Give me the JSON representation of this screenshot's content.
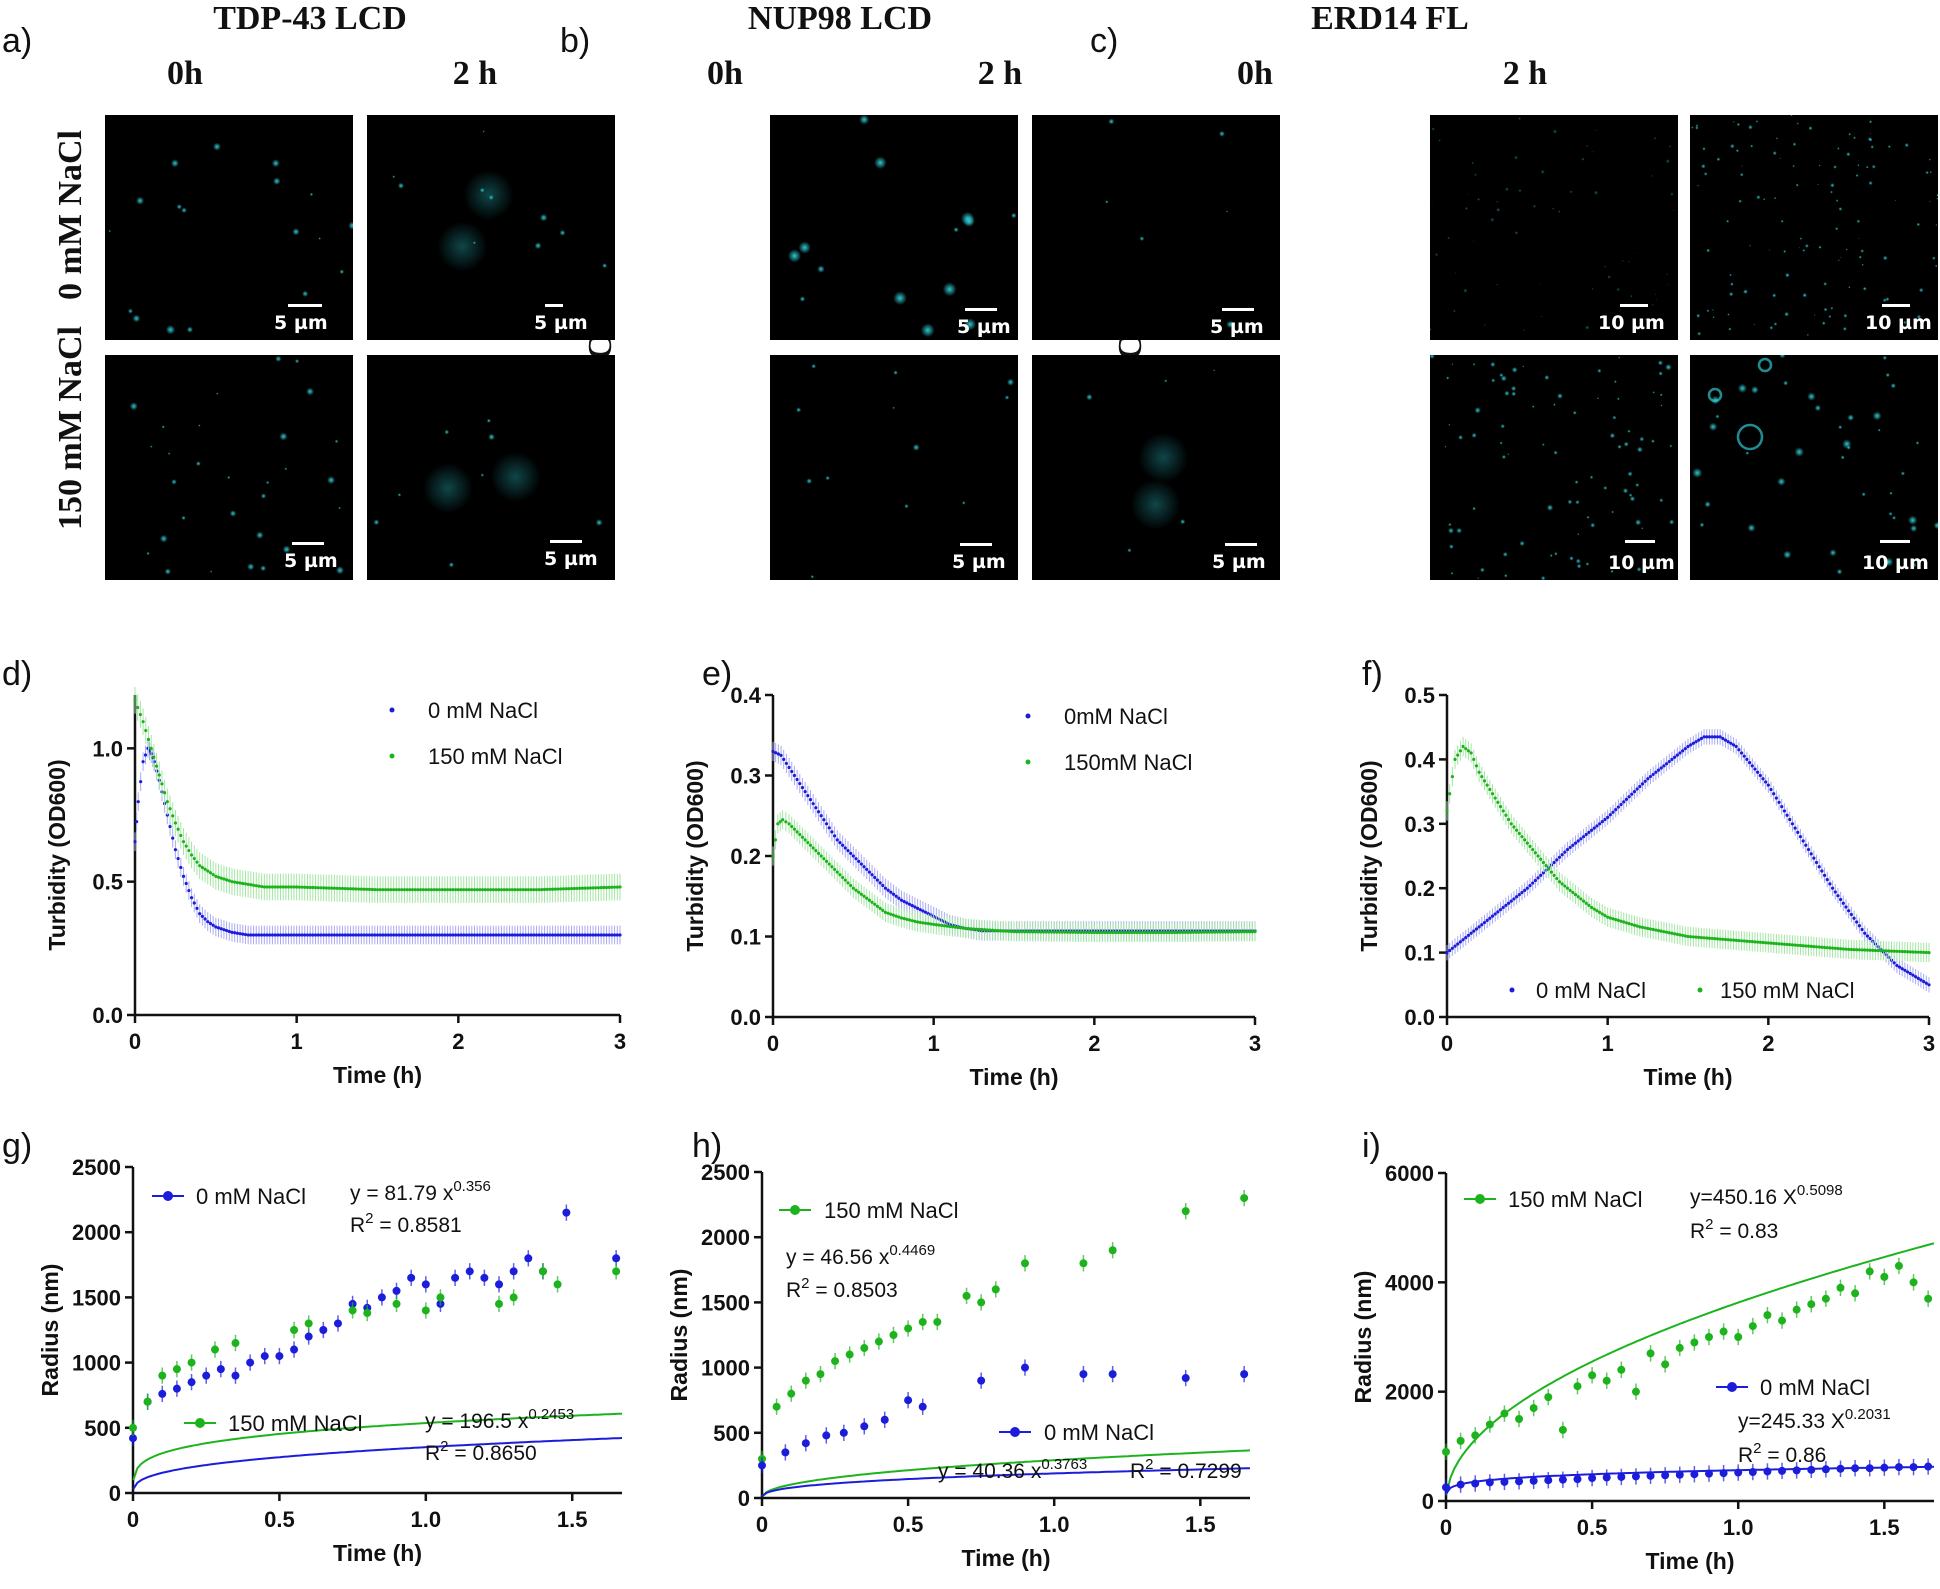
{
  "columns": [
    {
      "letter": "a)",
      "title": "TDP-43 LCD"
    },
    {
      "letter": "b)",
      "title": "NUP98 LCD"
    },
    {
      "letter": "c)",
      "title": "ERD14 FL"
    }
  ],
  "time_labels": [
    "0h",
    "2 h"
  ],
  "row_labels": [
    "0 mM NaCl",
    "150 mM NaCl"
  ],
  "scale_bars": {
    "a": [
      "5 µm",
      "5 µm",
      "5 µm",
      "5 µm"
    ],
    "b": [
      "5 µm",
      "5 µm",
      "5 µm",
      "5 µm"
    ],
    "c": [
      "10 µm",
      "10 µm",
      "10 µm",
      "10 µm"
    ]
  },
  "colors": {
    "blue": "#1c1cdb",
    "green": "#1db31d",
    "blue_err": "#a9a9f2",
    "green_err": "#a3e6a3",
    "droplet": "#2ec8d0"
  },
  "chart_data": [
    {
      "id": "d",
      "letter": "d)",
      "type": "scatter",
      "xlabel": "Time (h)",
      "ylabel": "Turbidity (OD600)",
      "xlim": [
        0,
        3
      ],
      "ylim": [
        0,
        1.2
      ],
      "xticks": [
        "0",
        "1",
        "2",
        "3"
      ],
      "xtick_values": [
        0,
        1,
        2,
        3
      ],
      "yticks": [
        "0.0",
        "0.5",
        "1.0"
      ],
      "ytick_values": [
        0,
        0.5,
        1.0
      ],
      "series": [
        {
          "name": "0 mM NaCl",
          "color": "blue",
          "kind": "dots",
          "x": [
            0,
            0.02,
            0.05,
            0.08,
            0.1,
            0.12,
            0.15,
            0.2,
            0.25,
            0.3,
            0.35,
            0.4,
            0.45,
            0.5,
            0.6,
            0.7,
            0.8,
            1.0,
            1.5,
            2.0,
            2.5,
            3.0
          ],
          "y": [
            0.65,
            0.8,
            0.95,
            1.0,
            0.98,
            0.95,
            0.88,
            0.75,
            0.62,
            0.52,
            0.44,
            0.38,
            0.35,
            0.33,
            0.31,
            0.3,
            0.3,
            0.3,
            0.3,
            0.3,
            0.3,
            0.3
          ],
          "err": 0.035
        },
        {
          "name": "150 mM NaCl",
          "color": "green",
          "kind": "dots",
          "x": [
            0,
            0.05,
            0.1,
            0.15,
            0.2,
            0.25,
            0.3,
            0.35,
            0.4,
            0.5,
            0.6,
            0.7,
            0.8,
            1.0,
            1.5,
            2.0,
            2.5,
            3.0
          ],
          "y": [
            1.18,
            1.1,
            1.0,
            0.9,
            0.8,
            0.72,
            0.65,
            0.6,
            0.56,
            0.52,
            0.5,
            0.49,
            0.48,
            0.48,
            0.47,
            0.47,
            0.47,
            0.48
          ],
          "err": 0.05
        }
      ],
      "legend_pos": "top-right"
    },
    {
      "id": "e",
      "letter": "e)",
      "type": "scatter",
      "xlabel": "Time (h)",
      "ylabel": "Turbidity (OD600)",
      "xlim": [
        0,
        3
      ],
      "ylim": [
        0,
        0.4
      ],
      "xticks": [
        "0",
        "1",
        "2",
        "3"
      ],
      "xtick_values": [
        0,
        1,
        2,
        3
      ],
      "yticks": [
        "0.0",
        "0.1",
        "0.2",
        "0.3",
        "0.4"
      ],
      "ytick_values": [
        0,
        0.1,
        0.2,
        0.3,
        0.4
      ],
      "series": [
        {
          "name": "0mM NaCl",
          "color": "blue",
          "kind": "dots",
          "x": [
            0,
            0.05,
            0.1,
            0.2,
            0.3,
            0.4,
            0.5,
            0.6,
            0.7,
            0.8,
            0.9,
            1.0,
            1.1,
            1.2,
            1.3,
            1.5,
            2.0,
            2.5,
            3.0
          ],
          "y": [
            0.33,
            0.325,
            0.31,
            0.28,
            0.25,
            0.22,
            0.2,
            0.18,
            0.16,
            0.145,
            0.135,
            0.125,
            0.115,
            0.11,
            0.107,
            0.107,
            0.107,
            0.107,
            0.107
          ],
          "err": 0.012
        },
        {
          "name": "150mM NaCl",
          "color": "green",
          "kind": "dots",
          "x": [
            0,
            0.03,
            0.06,
            0.1,
            0.2,
            0.3,
            0.4,
            0.5,
            0.6,
            0.7,
            0.8,
            0.9,
            1.0,
            1.2,
            1.5,
            2.0,
            2.5,
            3.0
          ],
          "y": [
            0.2,
            0.24,
            0.245,
            0.24,
            0.22,
            0.2,
            0.18,
            0.16,
            0.145,
            0.13,
            0.123,
            0.118,
            0.115,
            0.11,
            0.106,
            0.105,
            0.105,
            0.106
          ],
          "err": 0.012
        }
      ],
      "legend_pos": "top-right"
    },
    {
      "id": "f",
      "letter": "f)",
      "type": "scatter",
      "xlabel": "Time (h)",
      "ylabel": "Turbidity (OD600)",
      "xlim": [
        0,
        3
      ],
      "ylim": [
        0,
        0.5
      ],
      "xticks": [
        "0",
        "1",
        "2",
        "3"
      ],
      "xtick_values": [
        0,
        1,
        2,
        3
      ],
      "yticks": [
        "0.0",
        "0.1",
        "0.2",
        "0.3",
        "0.4",
        "0.5"
      ],
      "ytick_values": [
        0,
        0.1,
        0.2,
        0.3,
        0.4,
        0.5
      ],
      "series": [
        {
          "name": "0 mM NaCl",
          "color": "blue",
          "kind": "dots",
          "x": [
            0,
            0.1,
            0.25,
            0.5,
            0.75,
            1.0,
            1.25,
            1.5,
            1.6,
            1.7,
            1.8,
            2.0,
            2.2,
            2.4,
            2.6,
            2.8,
            3.0
          ],
          "y": [
            0.1,
            0.12,
            0.15,
            0.2,
            0.26,
            0.31,
            0.37,
            0.42,
            0.435,
            0.435,
            0.42,
            0.36,
            0.28,
            0.2,
            0.13,
            0.08,
            0.05
          ],
          "err": 0.012
        },
        {
          "name": "150 mM NaCl",
          "color": "green",
          "kind": "dots",
          "x": [
            0,
            0.05,
            0.1,
            0.15,
            0.2,
            0.3,
            0.4,
            0.5,
            0.6,
            0.7,
            0.8,
            0.9,
            1.0,
            1.2,
            1.5,
            2.0,
            2.5,
            3.0
          ],
          "y": [
            0.32,
            0.4,
            0.42,
            0.41,
            0.38,
            0.34,
            0.3,
            0.27,
            0.24,
            0.21,
            0.19,
            0.17,
            0.155,
            0.14,
            0.125,
            0.115,
            0.105,
            0.1
          ],
          "err": 0.015
        }
      ],
      "legend_pos": "bottom"
    },
    {
      "id": "g",
      "letter": "g)",
      "type": "scatter",
      "xlabel": "Time (h)",
      "ylabel": "Radius (nm)",
      "xlim": [
        0,
        1.67
      ],
      "ylim": [
        0,
        2500
      ],
      "xticks": [
        "0",
        "0.5",
        "1.0",
        "1.5"
      ],
      "xtick_values": [
        0,
        0.5,
        1.0,
        1.5
      ],
      "yticks": [
        "0",
        "500",
        "1000",
        "1500",
        "2000",
        "2500"
      ],
      "ytick_values": [
        0,
        500,
        1000,
        1500,
        2000,
        2500
      ],
      "series": [
        {
          "name": "0 mM NaCl",
          "color": "blue",
          "kind": "points",
          "fit": {
            "a": 81.79,
            "b": 0.356
          },
          "fit_label": "y = 81.79 x",
          "fit_exp": "0.356",
          "r2_label": "= 0.8581",
          "x": [
            0,
            0.05,
            0.1,
            0.15,
            0.2,
            0.25,
            0.3,
            0.35,
            0.4,
            0.45,
            0.5,
            0.55,
            0.6,
            0.65,
            0.7,
            0.75,
            0.8,
            0.85,
            0.9,
            0.95,
            1.0,
            1.05,
            1.1,
            1.15,
            1.2,
            1.25,
            1.3,
            1.35,
            1.4,
            1.48,
            1.65
          ],
          "y": [
            420,
            700,
            760,
            800,
            850,
            900,
            950,
            900,
            1000,
            1050,
            1050,
            1100,
            1200,
            1250,
            1300,
            1450,
            1420,
            1500,
            1550,
            1650,
            1600,
            1450,
            1650,
            1700,
            1650,
            1600,
            1700,
            1800,
            1700,
            2150,
            1800
          ]
        },
        {
          "name": "150 mM NaCl",
          "color": "green",
          "kind": "points",
          "fit": {
            "a": 196.5,
            "b": 0.2453
          },
          "fit_label": "y = 196.5 x",
          "fit_exp": "0.2453",
          "r2_label": "= 0.8650",
          "x": [
            0,
            0.05,
            0.1,
            0.15,
            0.2,
            0.28,
            0.35,
            0.55,
            0.6,
            0.75,
            0.8,
            0.9,
            1.0,
            1.05,
            1.25,
            1.3,
            1.4,
            1.45,
            1.65
          ],
          "y": [
            500,
            700,
            900,
            950,
            1000,
            1100,
            1150,
            1250,
            1300,
            1400,
            1380,
            1450,
            1400,
            1500,
            1450,
            1500,
            1700,
            1600,
            1700
          ]
        }
      ],
      "legend_pos": "top-left"
    },
    {
      "id": "h",
      "letter": "h)",
      "type": "scatter",
      "xlabel": "Time (h)",
      "ylabel": "Radius (nm)",
      "xlim": [
        0,
        1.67
      ],
      "ylim": [
        0,
        2500
      ],
      "xticks": [
        "0",
        "0.5",
        "1.0",
        "1.5"
      ],
      "xtick_values": [
        0,
        0.5,
        1.0,
        1.5
      ],
      "yticks": [
        "0",
        "500",
        "1000",
        "1500",
        "2000",
        "2500"
      ],
      "ytick_values": [
        0,
        500,
        1000,
        1500,
        2000,
        2500
      ],
      "series": [
        {
          "name": "150 mM NaCl",
          "color": "green",
          "kind": "points",
          "fit": {
            "a": 46.56,
            "b": 0.4469
          },
          "fit_label": "y = 46.56 x",
          "fit_exp": "0.4469",
          "r2_label": "= 0.8503",
          "x": [
            0,
            0.05,
            0.1,
            0.15,
            0.2,
            0.25,
            0.3,
            0.35,
            0.4,
            0.45,
            0.5,
            0.55,
            0.6,
            0.7,
            0.75,
            0.8,
            0.9,
            1.1,
            1.2,
            1.45,
            1.65
          ],
          "y": [
            300,
            700,
            800,
            900,
            950,
            1050,
            1100,
            1150,
            1200,
            1250,
            1300,
            1350,
            1350,
            1550,
            1500,
            1600,
            1800,
            1800,
            1900,
            2200,
            2300
          ]
        },
        {
          "name": "0 mM NaCl",
          "color": "blue",
          "kind": "points",
          "fit": {
            "a": 40.36,
            "b": 0.3763
          },
          "fit_label": "y = 40.36 x",
          "fit_exp": "0.3763",
          "r2_label": "= 0.7299",
          "x": [
            0,
            0.08,
            0.15,
            0.22,
            0.28,
            0.35,
            0.42,
            0.5,
            0.55,
            0.75,
            0.9,
            1.1,
            1.2,
            1.45,
            1.65
          ],
          "y": [
            250,
            350,
            420,
            480,
            500,
            550,
            600,
            750,
            700,
            900,
            1000,
            950,
            950,
            920,
            950
          ]
        }
      ],
      "legend_pos": "top-left"
    },
    {
      "id": "i",
      "letter": "i)",
      "type": "scatter",
      "xlabel": "Time (h)",
      "ylabel": "Radius (nm)",
      "xlim": [
        0,
        1.67
      ],
      "ylim": [
        0,
        6000
      ],
      "xticks": [
        "0",
        "0.5",
        "1.0",
        "1.5"
      ],
      "xtick_values": [
        0,
        0.5,
        1.0,
        1.5
      ],
      "yticks": [
        "0",
        "2000",
        "4000",
        "6000"
      ],
      "ytick_values": [
        0,
        2000,
        4000,
        6000
      ],
      "series": [
        {
          "name": "150 mM NaCl",
          "color": "green",
          "kind": "points",
          "fit": {
            "a": 450.16,
            "b": 0.5098
          },
          "fit_label": "y=450.16 X",
          "fit_exp": "0.5098",
          "r2_label": "= 0.83",
          "x": [
            0,
            0.05,
            0.1,
            0.15,
            0.2,
            0.25,
            0.3,
            0.35,
            0.4,
            0.45,
            0.5,
            0.55,
            0.6,
            0.65,
            0.7,
            0.75,
            0.8,
            0.85,
            0.9,
            0.95,
            1.0,
            1.05,
            1.1,
            1.15,
            1.2,
            1.25,
            1.3,
            1.35,
            1.4,
            1.45,
            1.5,
            1.55,
            1.6,
            1.65
          ],
          "y": [
            900,
            1100,
            1200,
            1400,
            1600,
            1500,
            1700,
            1900,
            1300,
            2100,
            2300,
            2200,
            2400,
            2000,
            2700,
            2500,
            2800,
            2900,
            3000,
            3100,
            3000,
            3200,
            3400,
            3300,
            3500,
            3600,
            3700,
            3900,
            3800,
            4200,
            4100,
            4300,
            4000,
            3700
          ]
        },
        {
          "name": "0 mM NaCl",
          "color": "blue",
          "kind": "points",
          "fit": {
            "a": 245.33,
            "b": 0.2031
          },
          "fit_label": "y=245.33 X",
          "fit_exp": "0.2031",
          "r2_label": "= 0.86",
          "x": [
            0,
            0.05,
            0.1,
            0.15,
            0.2,
            0.25,
            0.3,
            0.35,
            0.4,
            0.45,
            0.5,
            0.55,
            0.6,
            0.65,
            0.7,
            0.75,
            0.8,
            0.85,
            0.9,
            0.95,
            1.0,
            1.05,
            1.1,
            1.15,
            1.2,
            1.25,
            1.3,
            1.35,
            1.4,
            1.45,
            1.5,
            1.55,
            1.6,
            1.65
          ],
          "y": [
            250,
            300,
            320,
            340,
            350,
            360,
            370,
            380,
            390,
            400,
            420,
            430,
            440,
            450,
            460,
            470,
            480,
            490,
            500,
            510,
            520,
            530,
            540,
            550,
            560,
            570,
            580,
            590,
            600,
            600,
            610,
            620,
            620,
            630
          ]
        }
      ],
      "legend_pos": "top-left"
    }
  ]
}
